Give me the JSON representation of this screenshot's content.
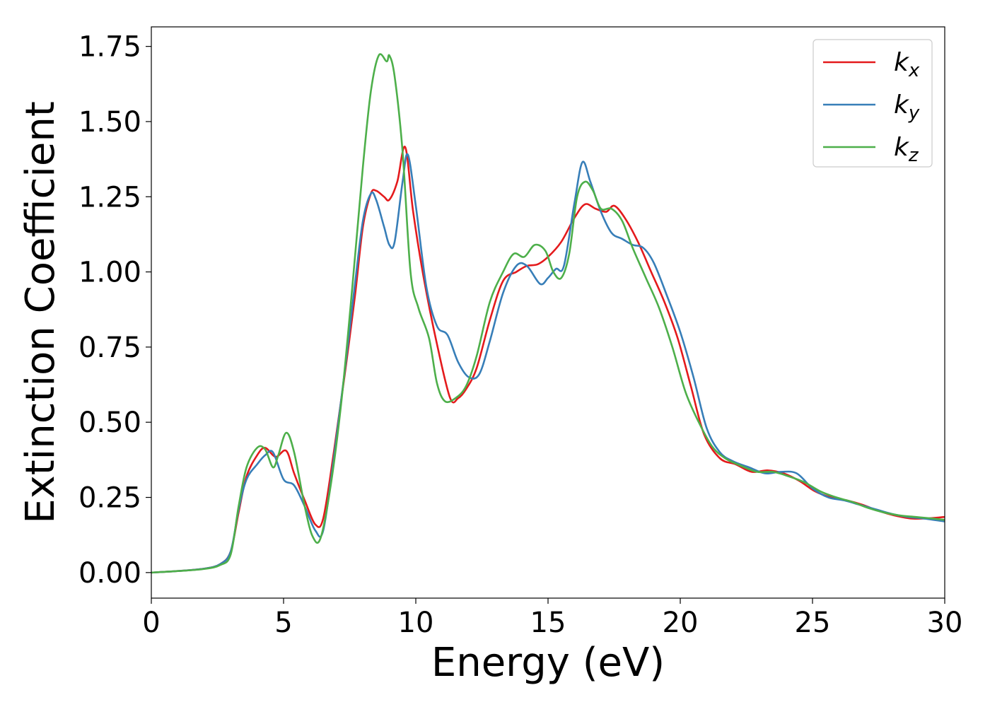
{
  "chart_data": {
    "type": "line",
    "xlabel": "Energy (eV)",
    "ylabel": "Extinction Coefficient",
    "xlim": [
      0,
      30
    ],
    "ylim": [
      -0.085,
      1.815
    ],
    "xticks": [
      "0",
      "5",
      "10",
      "15",
      "20",
      "25",
      "30"
    ],
    "yticks": [
      "0.00",
      "0.25",
      "0.50",
      "0.75",
      "1.00",
      "1.25",
      "1.50",
      "1.75"
    ],
    "grid": false,
    "legend_position": "top-right",
    "series": [
      {
        "name": "k_x",
        "label_base": "k",
        "label_sub": "x",
        "color": "#e41a1c",
        "x": [
          0,
          1,
          2,
          2.6,
          3.0,
          3.3,
          3.6,
          4.0,
          4.3,
          4.7,
          5.1,
          5.4,
          5.8,
          6.2,
          6.5,
          6.9,
          7.3,
          7.7,
          8.0,
          8.3,
          8.5,
          8.8,
          9.0,
          9.3,
          9.6,
          9.9,
          10.3,
          10.8,
          11.3,
          11.6,
          11.9,
          12.3,
          12.8,
          13.3,
          13.8,
          14.2,
          14.6,
          15.0,
          15.5,
          16.0,
          16.4,
          16.8,
          17.2,
          17.5,
          17.9,
          18.4,
          18.9,
          19.4,
          19.9,
          20.4,
          20.9,
          21.5,
          22.1,
          22.7,
          23.3,
          23.9,
          24.5,
          25.1,
          25.7,
          26.3,
          26.9,
          27.5,
          28.1,
          28.7,
          29.3,
          30.0
        ],
        "y": [
          0.0,
          0.005,
          0.013,
          0.028,
          0.07,
          0.2,
          0.32,
          0.39,
          0.415,
          0.385,
          0.405,
          0.33,
          0.24,
          0.16,
          0.18,
          0.4,
          0.65,
          0.92,
          1.15,
          1.26,
          1.27,
          1.25,
          1.24,
          1.3,
          1.415,
          1.2,
          0.98,
          0.76,
          0.58,
          0.58,
          0.61,
          0.68,
          0.84,
          0.97,
          1.0,
          1.02,
          1.025,
          1.05,
          1.1,
          1.18,
          1.225,
          1.21,
          1.2,
          1.22,
          1.18,
          1.1,
          1.0,
          0.9,
          0.78,
          0.62,
          0.46,
          0.38,
          0.36,
          0.335,
          0.34,
          0.33,
          0.305,
          0.27,
          0.25,
          0.24,
          0.225,
          0.205,
          0.19,
          0.18,
          0.18,
          0.185
        ]
      },
      {
        "name": "k_y",
        "label_base": "k",
        "label_sub": "y",
        "color": "#377eb8",
        "x": [
          0,
          1,
          2,
          2.6,
          3.0,
          3.3,
          3.6,
          4.0,
          4.3,
          4.6,
          5.0,
          5.4,
          5.8,
          6.2,
          6.5,
          6.9,
          7.3,
          7.7,
          8.0,
          8.3,
          8.5,
          8.8,
          9.0,
          9.2,
          9.5,
          9.7,
          10.0,
          10.4,
          10.8,
          11.2,
          11.6,
          12.0,
          12.4,
          12.8,
          13.3,
          13.8,
          14.2,
          14.7,
          15.0,
          15.3,
          15.6,
          16.0,
          16.3,
          16.6,
          17.0,
          17.4,
          17.8,
          18.2,
          18.6,
          19.0,
          19.5,
          20.0,
          20.5,
          21.0,
          21.5,
          22.0,
          22.6,
          23.2,
          23.8,
          24.4,
          25.0,
          25.6,
          26.2,
          26.8,
          27.4,
          28.0,
          28.6,
          29.2,
          30.0
        ],
        "y": [
          0.0,
          0.005,
          0.013,
          0.028,
          0.07,
          0.21,
          0.31,
          0.36,
          0.39,
          0.4,
          0.31,
          0.29,
          0.22,
          0.14,
          0.14,
          0.38,
          0.66,
          0.96,
          1.17,
          1.26,
          1.24,
          1.15,
          1.09,
          1.1,
          1.3,
          1.39,
          1.22,
          0.95,
          0.82,
          0.79,
          0.7,
          0.65,
          0.66,
          0.77,
          0.93,
          1.02,
          1.02,
          0.96,
          0.98,
          1.01,
          1.02,
          1.23,
          1.365,
          1.3,
          1.2,
          1.13,
          1.11,
          1.09,
          1.08,
          1.03,
          0.92,
          0.8,
          0.65,
          0.48,
          0.4,
          0.37,
          0.35,
          0.33,
          0.335,
          0.33,
          0.28,
          0.25,
          0.24,
          0.225,
          0.21,
          0.195,
          0.185,
          0.18,
          0.17
        ]
      },
      {
        "name": "k_z",
        "label_base": "k",
        "label_sub": "z",
        "color": "#4daf4a",
        "x": [
          0,
          1,
          2,
          2.6,
          3.0,
          3.3,
          3.6,
          4.0,
          4.3,
          4.6,
          4.8,
          5.1,
          5.4,
          5.8,
          6.1,
          6.4,
          6.8,
          7.2,
          7.6,
          8.0,
          8.3,
          8.6,
          8.9,
          9.0,
          9.2,
          9.5,
          9.8,
          10.1,
          10.5,
          10.8,
          11.1,
          11.5,
          11.9,
          12.3,
          12.8,
          13.3,
          13.7,
          14.1,
          14.5,
          14.9,
          15.2,
          15.5,
          15.8,
          16.1,
          16.4,
          16.7,
          17.0,
          17.4,
          17.8,
          18.2,
          18.7,
          19.2,
          19.7,
          20.2,
          20.7,
          21.2,
          21.7,
          22.3,
          22.9,
          23.5,
          24.1,
          24.7,
          25.3,
          25.9,
          26.5,
          27.1,
          27.7,
          28.3,
          28.9,
          29.5,
          30.0
        ],
        "y": [
          0.0,
          0.005,
          0.012,
          0.025,
          0.06,
          0.22,
          0.35,
          0.415,
          0.41,
          0.35,
          0.39,
          0.465,
          0.4,
          0.22,
          0.12,
          0.115,
          0.3,
          0.58,
          0.95,
          1.35,
          1.6,
          1.72,
          1.7,
          1.72,
          1.65,
          1.4,
          1.0,
          0.88,
          0.78,
          0.63,
          0.57,
          0.58,
          0.62,
          0.72,
          0.9,
          1.0,
          1.06,
          1.05,
          1.09,
          1.07,
          1.0,
          0.98,
          1.06,
          1.25,
          1.3,
          1.27,
          1.21,
          1.21,
          1.17,
          1.08,
          0.98,
          0.88,
          0.75,
          0.6,
          0.5,
          0.42,
          0.38,
          0.355,
          0.335,
          0.335,
          0.32,
          0.3,
          0.27,
          0.25,
          0.235,
          0.215,
          0.2,
          0.19,
          0.185,
          0.18,
          0.175
        ]
      }
    ]
  }
}
